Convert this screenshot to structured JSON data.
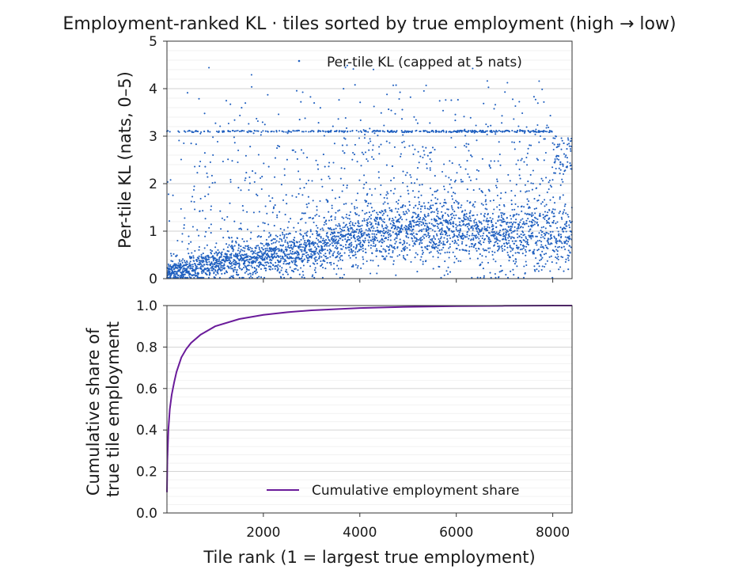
{
  "chart_data": [
    {
      "type": "scatter",
      "title": "Employment-ranked KL  ·  tiles sorted by true employment (high → low)",
      "xlabel": "",
      "ylabel": "Per-tile KL (nats, 0–5)",
      "xlim": [
        1,
        8400
      ],
      "ylim": [
        0,
        5
      ],
      "x_ticks": [
        2000,
        4000,
        6000,
        8000
      ],
      "y_ticks": [
        0,
        1,
        2,
        3,
        4,
        5
      ],
      "y_tick_labels": [
        "0",
        "1",
        "2",
        "3",
        "4",
        "5"
      ],
      "grid": true,
      "legend": "top-right",
      "series": [
        {
          "name": "Per-tile KL (capped at 5 nats)",
          "color": "#1f5fbf",
          "n_points": 8400,
          "trend": [
            {
              "x": 1,
              "y": 0.15
            },
            {
              "x": 500,
              "y": 0.2
            },
            {
              "x": 1000,
              "y": 0.3
            },
            {
              "x": 1500,
              "y": 0.38
            },
            {
              "x": 2000,
              "y": 0.45
            },
            {
              "x": 2500,
              "y": 0.5
            },
            {
              "x": 3000,
              "y": 0.6
            },
            {
              "x": 3500,
              "y": 0.75
            },
            {
              "x": 4000,
              "y": 0.85
            },
            {
              "x": 4500,
              "y": 0.95
            },
            {
              "x": 5000,
              "y": 1.0
            },
            {
              "x": 5500,
              "y": 1.0
            },
            {
              "x": 6000,
              "y": 0.95
            },
            {
              "x": 6500,
              "y": 0.9
            },
            {
              "x": 7000,
              "y": 0.85
            },
            {
              "x": 7500,
              "y": 0.85
            },
            {
              "x": 8000,
              "y": 0.85
            }
          ],
          "plateau_value": 3.1,
          "upper_cluster": {
            "x_from": 8000,
            "x_to": 8400,
            "y_low": 2.2,
            "y_high": 3.0
          }
        }
      ]
    },
    {
      "type": "line",
      "title": "",
      "xlabel": "Tile rank (1 = largest true employment)",
      "ylabel_lines": [
        "Cumulative share of",
        "true tile employment"
      ],
      "xlim": [
        1,
        8400
      ],
      "ylim": [
        0,
        1
      ],
      "x_ticks": [
        2000,
        4000,
        6000,
        8000
      ],
      "x_tick_labels": [
        "2000",
        "4000",
        "6000",
        "8000"
      ],
      "y_ticks": [
        0,
        0.2,
        0.4,
        0.6,
        0.8,
        1.0
      ],
      "y_tick_labels": [
        "0.0",
        "0.2",
        "0.4",
        "0.6",
        "0.8",
        "1.0"
      ],
      "grid": true,
      "legend": "bottom-right",
      "series": [
        {
          "name": "Cumulative employment share",
          "color": "#6a1b9a",
          "x": [
            1,
            10,
            30,
            60,
            100,
            150,
            200,
            300,
            400,
            500,
            700,
            1000,
            1500,
            2000,
            2500,
            3000,
            4000,
            5000,
            6000,
            7000,
            8000,
            8400
          ],
          "y": [
            0.1,
            0.25,
            0.4,
            0.5,
            0.57,
            0.63,
            0.68,
            0.75,
            0.79,
            0.82,
            0.86,
            0.9,
            0.935,
            0.955,
            0.968,
            0.977,
            0.988,
            0.994,
            0.997,
            0.999,
            1.0,
            1.0
          ]
        }
      ]
    }
  ]
}
